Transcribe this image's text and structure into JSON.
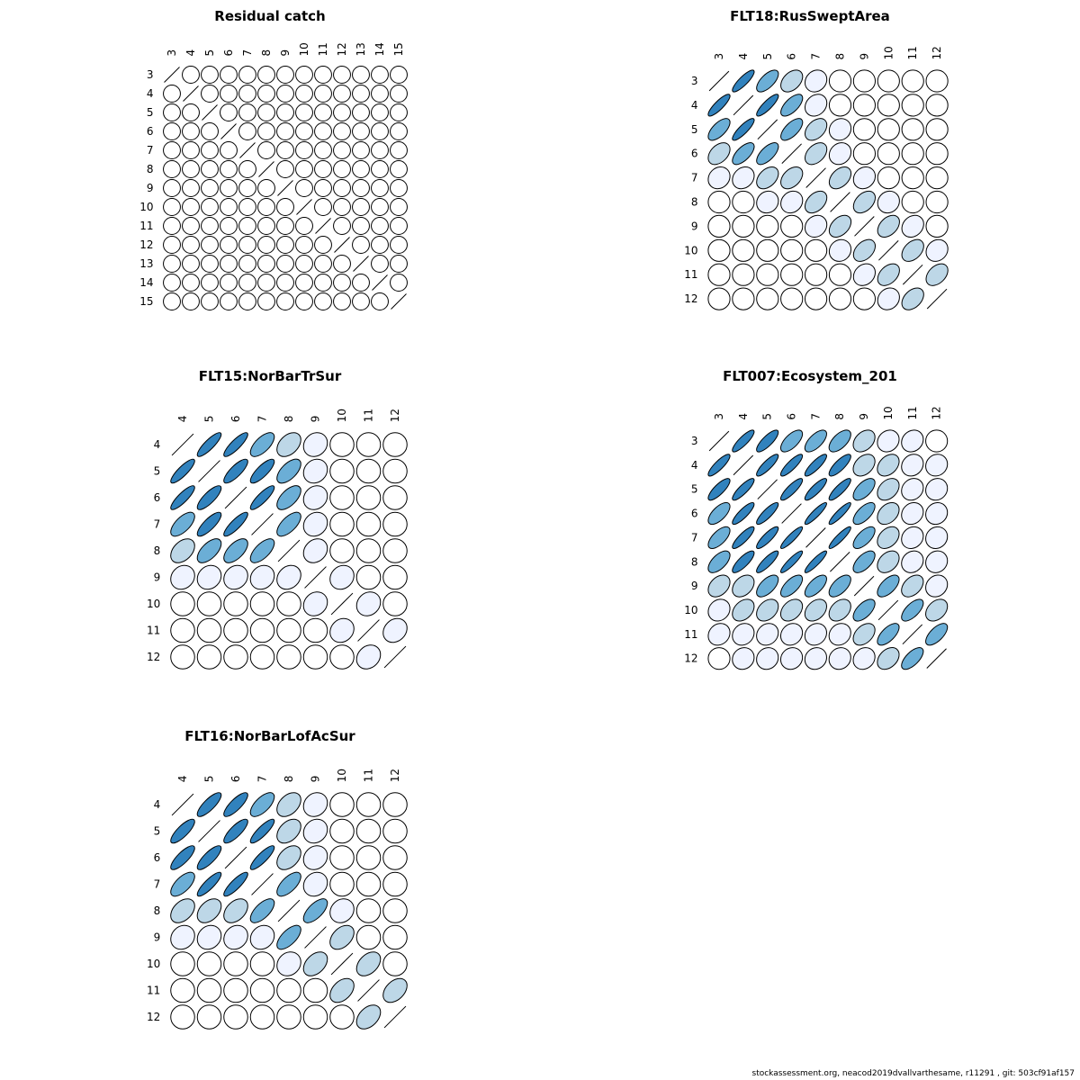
{
  "footer": "stockassessment.org, neacod2019dvallvarthesame, r11291 , git: 503cf91af157",
  "palette": [
    "#ffffff",
    "#eff3ff",
    "#bdd7e7",
    "#6baed6",
    "#3182bd"
  ],
  "chart_data": [
    {
      "type": "heatmap",
      "encoding": "ellipse correlation matrix",
      "title": "Residual catch",
      "labels": [
        "3",
        "4",
        "5",
        "6",
        "7",
        "8",
        "9",
        "10",
        "11",
        "12",
        "13",
        "14",
        "15"
      ],
      "correlation": "all off-diagonal approximately 0"
    },
    {
      "type": "heatmap",
      "encoding": "ellipse correlation matrix",
      "title": "FLT18:RusSweptArea",
      "labels": [
        "3",
        "4",
        "5",
        "6",
        "7",
        "8",
        "9",
        "10",
        "11",
        "12"
      ],
      "values": [
        [
          1.0,
          0.85,
          0.65,
          0.4,
          0.15,
          0.0,
          0.0,
          0.0,
          0.0,
          0.0
        ],
        [
          0.85,
          1.0,
          0.85,
          0.65,
          0.2,
          0.0,
          0.0,
          0.0,
          0.0,
          0.0
        ],
        [
          0.65,
          0.85,
          1.0,
          0.65,
          0.4,
          0.1,
          0.0,
          0.0,
          0.0,
          0.0
        ],
        [
          0.4,
          0.65,
          0.65,
          1.0,
          0.4,
          0.15,
          0.0,
          0.0,
          0.0,
          0.0
        ],
        [
          0.15,
          0.2,
          0.4,
          0.4,
          1.0,
          0.4,
          0.15,
          0.0,
          0.0,
          0.0
        ],
        [
          0.0,
          0.0,
          0.1,
          0.15,
          0.4,
          1.0,
          0.4,
          0.1,
          0.0,
          0.0
        ],
        [
          0.0,
          0.0,
          0.0,
          0.0,
          0.15,
          0.4,
          1.0,
          0.4,
          0.2,
          0.0
        ],
        [
          0.0,
          0.0,
          0.0,
          0.0,
          0.0,
          0.1,
          0.4,
          1.0,
          0.4,
          0.15
        ],
        [
          0.0,
          0.0,
          0.0,
          0.0,
          0.0,
          0.0,
          0.2,
          0.4,
          1.0,
          0.4
        ],
        [
          0.0,
          0.0,
          0.0,
          0.0,
          0.0,
          0.0,
          0.0,
          0.15,
          0.4,
          1.0
        ]
      ]
    },
    {
      "type": "heatmap",
      "encoding": "ellipse correlation matrix",
      "title": "FLT15:NorBarTrSur",
      "labels": [
        "4",
        "5",
        "6",
        "7",
        "8",
        "9",
        "10",
        "11",
        "12"
      ],
      "values": [
        [
          1.0,
          0.85,
          0.85,
          0.65,
          0.4,
          0.15,
          0.0,
          0.0,
          0.0
        ],
        [
          0.85,
          1.0,
          0.8,
          0.8,
          0.6,
          0.15,
          0.0,
          0.0,
          0.0
        ],
        [
          0.85,
          0.8,
          1.0,
          0.85,
          0.6,
          0.15,
          0.0,
          0.0,
          0.0
        ],
        [
          0.65,
          0.8,
          0.85,
          1.0,
          0.65,
          0.15,
          0.0,
          0.0,
          0.0
        ],
        [
          0.4,
          0.6,
          0.6,
          0.65,
          1.0,
          0.2,
          0.0,
          0.0,
          0.0
        ],
        [
          0.15,
          0.15,
          0.15,
          0.15,
          0.2,
          1.0,
          0.15,
          0.0,
          0.0
        ],
        [
          0.0,
          0.0,
          0.0,
          0.0,
          0.0,
          0.15,
          1.0,
          0.15,
          0.0
        ],
        [
          0.0,
          0.0,
          0.0,
          0.0,
          0.0,
          0.0,
          0.15,
          1.0,
          0.2
        ],
        [
          0.0,
          0.0,
          0.0,
          0.0,
          0.0,
          0.0,
          0.0,
          0.2,
          1.0
        ]
      ]
    },
    {
      "type": "heatmap",
      "encoding": "ellipse correlation matrix",
      "title": "FLT007:Ecosystem_201",
      "labels": [
        "3",
        "4",
        "5",
        "6",
        "7",
        "8",
        "9",
        "10",
        "11",
        "12"
      ],
      "values": [
        [
          1.0,
          0.85,
          0.8,
          0.65,
          0.65,
          0.6,
          0.35,
          0.15,
          0.15,
          0.0
        ],
        [
          0.85,
          1.0,
          0.85,
          0.85,
          0.85,
          0.8,
          0.35,
          0.35,
          0.15,
          0.1
        ],
        [
          0.8,
          0.85,
          1.0,
          0.85,
          0.85,
          0.85,
          0.6,
          0.35,
          0.15,
          0.1
        ],
        [
          0.65,
          0.85,
          0.85,
          1.0,
          0.9,
          0.9,
          0.65,
          0.35,
          0.15,
          0.1
        ],
        [
          0.65,
          0.85,
          0.85,
          0.9,
          1.0,
          0.9,
          0.65,
          0.35,
          0.15,
          0.1
        ],
        [
          0.6,
          0.8,
          0.85,
          0.9,
          0.9,
          1.0,
          0.6,
          0.35,
          0.15,
          0.1
        ],
        [
          0.35,
          0.35,
          0.6,
          0.65,
          0.65,
          0.6,
          1.0,
          0.6,
          0.4,
          0.15
        ],
        [
          0.15,
          0.35,
          0.35,
          0.35,
          0.35,
          0.35,
          0.6,
          1.0,
          0.65,
          0.35
        ],
        [
          0.15,
          0.15,
          0.15,
          0.15,
          0.15,
          0.15,
          0.4,
          0.65,
          1.0,
          0.65
        ],
        [
          0.0,
          0.1,
          0.1,
          0.1,
          0.1,
          0.1,
          0.15,
          0.35,
          0.65,
          1.0
        ]
      ]
    },
    {
      "type": "heatmap",
      "encoding": "ellipse correlation matrix",
      "title": "FLT16:NorBarLofAcSur",
      "labels": [
        "4",
        "5",
        "6",
        "7",
        "8",
        "9",
        "10",
        "11",
        "12"
      ],
      "values": [
        [
          1.0,
          0.8,
          0.8,
          0.65,
          0.4,
          0.15,
          0.0,
          0.0,
          0.0
        ],
        [
          0.8,
          1.0,
          0.8,
          0.85,
          0.4,
          0.15,
          0.0,
          0.0,
          0.0
        ],
        [
          0.8,
          0.8,
          1.0,
          0.85,
          0.4,
          0.15,
          0.0,
          0.0,
          0.0
        ],
        [
          0.65,
          0.85,
          0.85,
          1.0,
          0.65,
          0.15,
          0.0,
          0.0,
          0.0
        ],
        [
          0.4,
          0.4,
          0.4,
          0.65,
          1.0,
          0.65,
          0.15,
          0.0,
          0.0
        ],
        [
          0.15,
          0.15,
          0.15,
          0.15,
          0.65,
          1.0,
          0.4,
          0.0,
          0.0
        ],
        [
          0.0,
          0.0,
          0.0,
          0.0,
          0.15,
          0.4,
          1.0,
          0.4,
          0.0
        ],
        [
          0.0,
          0.0,
          0.0,
          0.0,
          0.0,
          0.0,
          0.4,
          1.0,
          0.4
        ],
        [
          0.0,
          0.0,
          0.0,
          0.0,
          0.0,
          0.0,
          0.0,
          0.4,
          1.0
        ]
      ]
    }
  ]
}
